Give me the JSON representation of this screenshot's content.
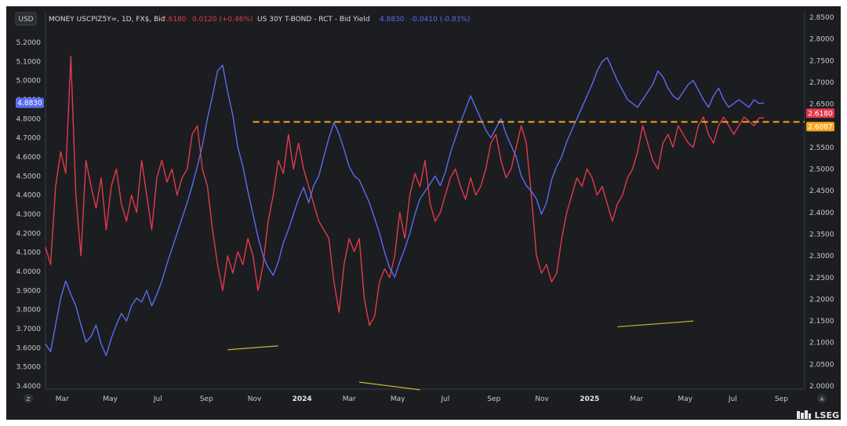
{
  "toolbar": {
    "currency": "USD",
    "left_tool": "Z",
    "right_tool": "A"
  },
  "legend": {
    "series1": {
      "label": "MONEY USCPIZ5Y=, 1D, FX$, Bid",
      "value": "2.6180",
      "change": "0.0120 (+0.46%)"
    },
    "series2": {
      "label": "US 30Y T-BOND - RCT - Bid Yield",
      "value": "4.8830",
      "change": "-0.0410 (-0.83%)"
    }
  },
  "badges": {
    "blue_price": "4.8830",
    "red_price": "2.6180",
    "orange_price": "2.6087"
  },
  "logo": {
    "text": "LSEG"
  },
  "colors": {
    "blue": "#5b6cf0",
    "red": "#e23a4b",
    "orange": "#f5a623",
    "trend": "#c9b23a",
    "background": "#1b1d20"
  },
  "chart_data": {
    "type": "line",
    "left_axis": {
      "ylim": [
        3.4,
        5.2
      ],
      "ticks": [
        "3.4000",
        "3.5000",
        "3.6000",
        "3.7000",
        "3.8000",
        "3.9000",
        "4.0000",
        "4.1000",
        "4.2000",
        "4.3000",
        "4.4000",
        "4.5000",
        "4.6000",
        "4.7000",
        "4.8000",
        "4.9000",
        "5.0000",
        "5.1000",
        "5.2000"
      ]
    },
    "right_axis": {
      "ylim": [
        2.0,
        2.85
      ],
      "ticks": [
        "2.0000",
        "2.0500",
        "2.1000",
        "2.1500",
        "2.2000",
        "2.2500",
        "2.3000",
        "2.3500",
        "2.4000",
        "2.4500",
        "2.5000",
        "2.5500",
        "2.6000",
        "2.6500",
        "2.7000",
        "2.7500",
        "2.8000",
        "2.8500"
      ]
    },
    "x_ticks": [
      {
        "label": "Mar",
        "x": 0.033,
        "bold": false
      },
      {
        "label": "May",
        "x": 0.128,
        "bold": false
      },
      {
        "label": "Jul",
        "x": 0.222,
        "bold": false
      },
      {
        "label": "Sep",
        "x": 0.318,
        "bold": false
      },
      {
        "label": "Nov",
        "x": 0.413,
        "bold": false
      },
      {
        "label": "2024",
        "x": 0.507,
        "bold": true
      },
      {
        "label": "Mar",
        "x": 0.6,
        "bold": false
      },
      {
        "label": "May",
        "x": 0.696,
        "bold": false
      },
      {
        "label": "Jul",
        "x": 0.79,
        "bold": false
      },
      {
        "label": "Sep",
        "x": 0.886,
        "bold": false
      },
      {
        "label": "Nov",
        "x": 0.981,
        "bold": false
      },
      {
        "label": "2025",
        "x": 1.075,
        "bold": true
      },
      {
        "label": "Mar",
        "x": 1.168,
        "bold": false
      },
      {
        "label": "May",
        "x": 1.264,
        "bold": false
      },
      {
        "label": "Jul",
        "x": 1.358,
        "bold": false
      },
      {
        "label": "Sep",
        "x": 1.454,
        "bold": false
      }
    ],
    "series": [
      {
        "name": "US 30Y T-BOND - RCT - Bid Yield",
        "axis": "left",
        "x": [
          0.0,
          0.01,
          0.02,
          0.03,
          0.04,
          0.05,
          0.06,
          0.07,
          0.08,
          0.09,
          0.1,
          0.11,
          0.12,
          0.13,
          0.14,
          0.15,
          0.16,
          0.17,
          0.18,
          0.19,
          0.2,
          0.21,
          0.22,
          0.23,
          0.24,
          0.25,
          0.26,
          0.27,
          0.28,
          0.29,
          0.3,
          0.31,
          0.32,
          0.33,
          0.34,
          0.35,
          0.36,
          0.37,
          0.38,
          0.39,
          0.4,
          0.41,
          0.42,
          0.43,
          0.44,
          0.45,
          0.46,
          0.47,
          0.48,
          0.49,
          0.5,
          0.51,
          0.52,
          0.53,
          0.54,
          0.55,
          0.56,
          0.57,
          0.58,
          0.59,
          0.6,
          0.61,
          0.62,
          0.63,
          0.64,
          0.65,
          0.66,
          0.67,
          0.68,
          0.69,
          0.7,
          0.71,
          0.72,
          0.73,
          0.74,
          0.75,
          0.76,
          0.77,
          0.78,
          0.79,
          0.8,
          0.81,
          0.82,
          0.83,
          0.84,
          0.85,
          0.86,
          0.87,
          0.88,
          0.89,
          0.9,
          0.91,
          0.92,
          0.93,
          0.94,
          0.95,
          0.96,
          0.97,
          0.98,
          0.99,
          1.0,
          1.01,
          1.02,
          1.03,
          1.04,
          1.05,
          1.06,
          1.07,
          1.08,
          1.09,
          1.1,
          1.11,
          1.12,
          1.13,
          1.14,
          1.15,
          1.16,
          1.17,
          1.18,
          1.19,
          1.2,
          1.21,
          1.22,
          1.23,
          1.24,
          1.25,
          1.26,
          1.27,
          1.28,
          1.29,
          1.3,
          1.31,
          1.32,
          1.33,
          1.34,
          1.35,
          1.36,
          1.37,
          1.38,
          1.39,
          1.4,
          1.41,
          1.42
        ],
        "values": [
          3.62,
          3.58,
          3.72,
          3.86,
          3.95,
          3.88,
          3.82,
          3.72,
          3.63,
          3.66,
          3.72,
          3.62,
          3.56,
          3.65,
          3.72,
          3.78,
          3.74,
          3.82,
          3.86,
          3.84,
          3.9,
          3.82,
          3.88,
          3.95,
          4.04,
          4.12,
          4.2,
          4.28,
          4.36,
          4.45,
          4.55,
          4.66,
          4.8,
          4.92,
          5.05,
          5.08,
          4.94,
          4.82,
          4.65,
          4.55,
          4.42,
          4.3,
          4.18,
          4.08,
          4.02,
          3.98,
          4.05,
          4.15,
          4.22,
          4.3,
          4.38,
          4.44,
          4.36,
          4.45,
          4.5,
          4.6,
          4.7,
          4.78,
          4.72,
          4.64,
          4.55,
          4.5,
          4.48,
          4.42,
          4.36,
          4.28,
          4.2,
          4.1,
          4.02,
          3.97,
          4.05,
          4.12,
          4.2,
          4.3,
          4.38,
          4.42,
          4.46,
          4.5,
          4.45,
          4.52,
          4.62,
          4.7,
          4.78,
          4.85,
          4.92,
          4.86,
          4.8,
          4.74,
          4.7,
          4.75,
          4.8,
          4.72,
          4.66,
          4.6,
          4.5,
          4.45,
          4.42,
          4.38,
          4.3,
          4.36,
          4.48,
          4.55,
          4.6,
          4.68,
          4.74,
          4.8,
          4.86,
          4.92,
          4.98,
          5.05,
          5.1,
          5.12,
          5.06,
          5.0,
          4.95,
          4.9,
          4.88,
          4.86,
          4.9,
          4.94,
          4.98,
          5.05,
          5.02,
          4.96,
          4.92,
          4.9,
          4.94,
          4.98,
          5.0,
          4.95,
          4.9,
          4.86,
          4.92,
          4.96,
          4.9,
          4.86,
          4.88,
          4.9,
          4.88,
          4.86,
          4.9,
          4.88,
          4.883
        ]
      },
      {
        "name": "MONEY USCPIZ5Y=, 1D, FX$, Bid",
        "axis": "right",
        "x": [
          0.0,
          0.01,
          0.02,
          0.03,
          0.04,
          0.05,
          0.06,
          0.07,
          0.08,
          0.09,
          0.1,
          0.11,
          0.12,
          0.13,
          0.14,
          0.15,
          0.16,
          0.17,
          0.18,
          0.19,
          0.2,
          0.21,
          0.22,
          0.23,
          0.24,
          0.25,
          0.26,
          0.27,
          0.28,
          0.29,
          0.3,
          0.31,
          0.32,
          0.33,
          0.34,
          0.35,
          0.36,
          0.37,
          0.38,
          0.39,
          0.4,
          0.41,
          0.42,
          0.43,
          0.44,
          0.45,
          0.46,
          0.47,
          0.48,
          0.49,
          0.5,
          0.51,
          0.52,
          0.53,
          0.54,
          0.55,
          0.56,
          0.57,
          0.58,
          0.59,
          0.6,
          0.61,
          0.62,
          0.63,
          0.64,
          0.65,
          0.66,
          0.67,
          0.68,
          0.69,
          0.7,
          0.71,
          0.72,
          0.73,
          0.74,
          0.75,
          0.76,
          0.77,
          0.78,
          0.79,
          0.8,
          0.81,
          0.82,
          0.83,
          0.84,
          0.85,
          0.86,
          0.87,
          0.88,
          0.89,
          0.9,
          0.91,
          0.92,
          0.93,
          0.94,
          0.95,
          0.96,
          0.97,
          0.98,
          0.99,
          1.0,
          1.01,
          1.02,
          1.03,
          1.04,
          1.05,
          1.06,
          1.07,
          1.08,
          1.09,
          1.1,
          1.11,
          1.12,
          1.13,
          1.14,
          1.15,
          1.16,
          1.17,
          1.18,
          1.19,
          1.2,
          1.21,
          1.22,
          1.23,
          1.24,
          1.25,
          1.26,
          1.27,
          1.28,
          1.29,
          1.3,
          1.31,
          1.32,
          1.33,
          1.34,
          1.35,
          1.36,
          1.37,
          1.38,
          1.39,
          1.4,
          1.41,
          1.42
        ],
        "values": [
          2.32,
          2.28,
          2.46,
          2.54,
          2.49,
          2.76,
          2.44,
          2.3,
          2.52,
          2.46,
          2.41,
          2.48,
          2.36,
          2.46,
          2.5,
          2.42,
          2.38,
          2.44,
          2.4,
          2.52,
          2.44,
          2.36,
          2.48,
          2.52,
          2.47,
          2.5,
          2.44,
          2.48,
          2.5,
          2.58,
          2.6,
          2.5,
          2.46,
          2.36,
          2.28,
          2.22,
          2.3,
          2.26,
          2.31,
          2.28,
          2.34,
          2.3,
          2.22,
          2.28,
          2.38,
          2.44,
          2.52,
          2.49,
          2.58,
          2.5,
          2.56,
          2.5,
          2.46,
          2.42,
          2.38,
          2.36,
          2.34,
          2.24,
          2.17,
          2.28,
          2.34,
          2.31,
          2.34,
          2.2,
          2.14,
          2.16,
          2.24,
          2.27,
          2.25,
          2.3,
          2.4,
          2.34,
          2.44,
          2.49,
          2.46,
          2.52,
          2.42,
          2.38,
          2.4,
          2.44,
          2.48,
          2.5,
          2.46,
          2.43,
          2.48,
          2.44,
          2.46,
          2.5,
          2.56,
          2.58,
          2.52,
          2.48,
          2.5,
          2.55,
          2.6,
          2.56,
          2.44,
          2.3,
          2.26,
          2.28,
          2.24,
          2.26,
          2.34,
          2.4,
          2.44,
          2.48,
          2.46,
          2.5,
          2.48,
          2.44,
          2.46,
          2.42,
          2.38,
          2.42,
          2.44,
          2.48,
          2.5,
          2.54,
          2.6,
          2.56,
          2.52,
          2.5,
          2.56,
          2.58,
          2.55,
          2.6,
          2.58,
          2.56,
          2.55,
          2.6,
          2.62,
          2.58,
          2.56,
          2.6,
          2.62,
          2.6,
          2.58,
          2.6,
          2.62,
          2.61,
          2.6,
          2.618,
          2.618
        ]
      }
    ],
    "reference_line": {
      "axis": "right",
      "value": 2.6087,
      "label": "2.6087"
    },
    "trend_lines": [
      {
        "axis": "left",
        "x": [
          0.36,
          0.46
        ],
        "y": [
          3.59,
          3.61
        ]
      },
      {
        "axis": "left",
        "x": [
          0.62,
          0.74
        ],
        "y": [
          3.42,
          3.38
        ]
      },
      {
        "axis": "left",
        "x": [
          1.13,
          1.28
        ],
        "y": [
          3.71,
          3.74
        ]
      }
    ],
    "x_range": [
      0.0,
      1.5
    ]
  }
}
